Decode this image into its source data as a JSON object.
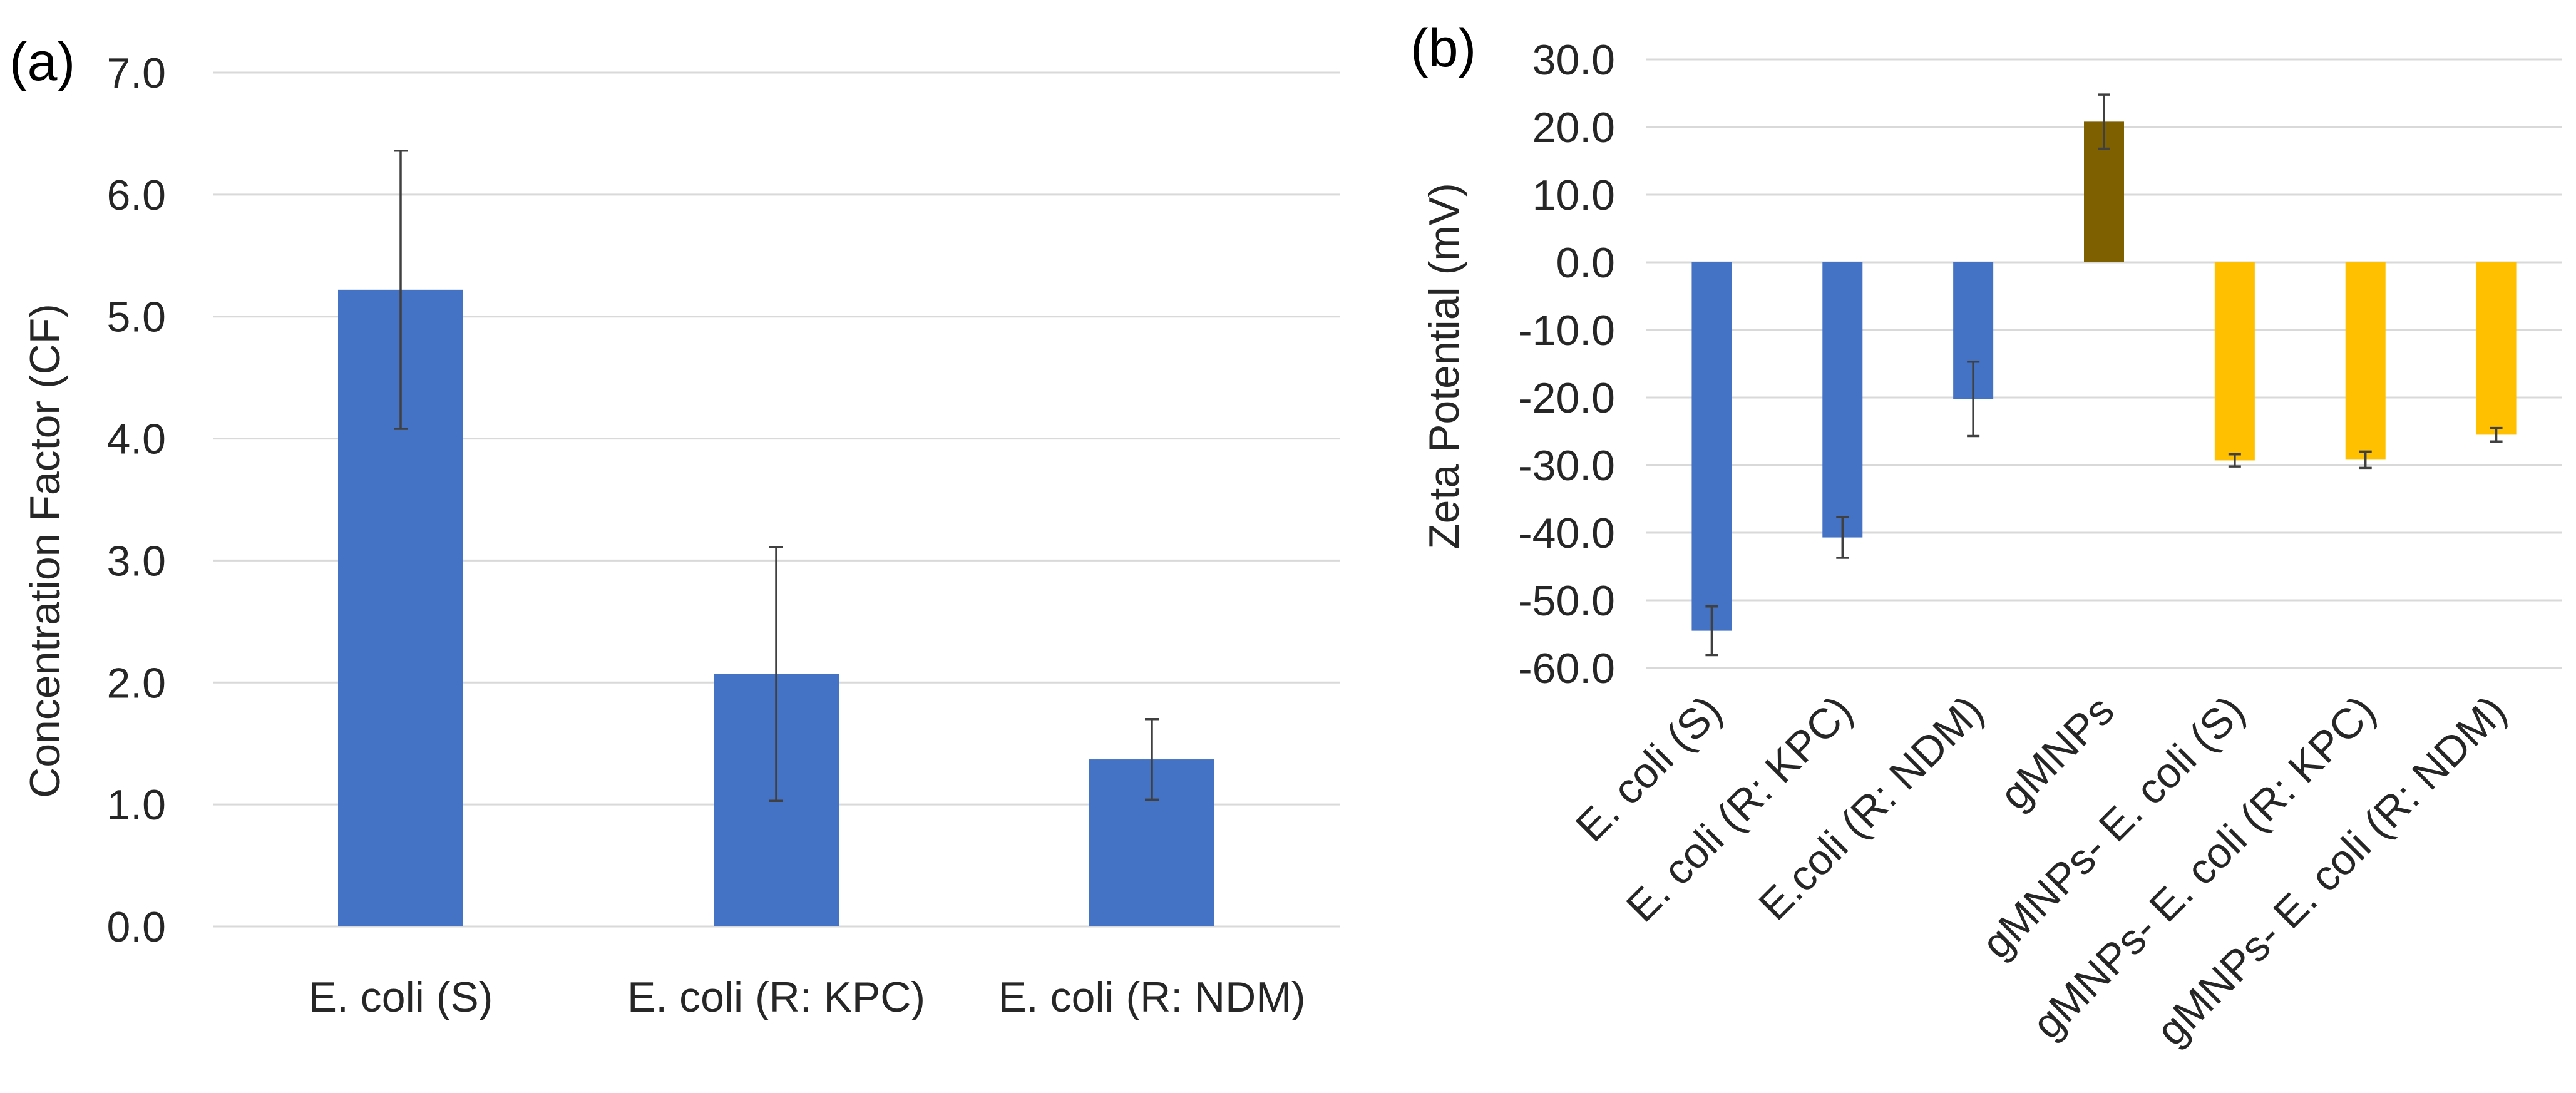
{
  "chart_data": [
    {
      "panel_label": "(a)",
      "type": "bar",
      "title": "",
      "xlabel": "",
      "ylabel": "Concentration Factor (CF)",
      "ylim": [
        0,
        7
      ],
      "yticks": [
        "0.0",
        "1.0",
        "2.0",
        "3.0",
        "4.0",
        "5.0",
        "6.0",
        "7.0"
      ],
      "grid": true,
      "categories": [
        "E. coli (S)",
        "E. coli (R: KPC)",
        "E. coli (R: NDM)"
      ],
      "values": [
        5.22,
        2.07,
        1.37
      ],
      "errors": [
        1.14,
        1.04,
        0.33
      ],
      "colors": [
        "#4472c4",
        "#4472c4",
        "#4472c4"
      ]
    },
    {
      "panel_label": "(b)",
      "type": "bar",
      "title": "",
      "xlabel": "",
      "ylabel": "Zeta Potential (mV)",
      "ylim": [
        -60,
        30
      ],
      "yticks": [
        "-60.0",
        "-50.0",
        "-40.0",
        "-30.0",
        "-20.0",
        "-10.0",
        "0.0",
        "10.0",
        "20.0",
        "30.0"
      ],
      "grid": true,
      "categories": [
        "E. coli (S)",
        "E. coli (R: KPC)",
        "E.coli (R: NDM)",
        "gMNPs",
        "gMNPs- E. coli (S)",
        "gMNPs- E. coli (R: KPC)",
        "gMNPs- E. coli (R: NDM)"
      ],
      "values": [
        -54.5,
        -40.7,
        -20.2,
        20.8,
        -29.3,
        -29.2,
        -25.5
      ],
      "errors": [
        3.6,
        3.0,
        5.5,
        4.0,
        0.9,
        1.2,
        1.0
      ],
      "colors": [
        "#4472c4",
        "#4472c4",
        "#4472c4",
        "#7f6000",
        "#ffc000",
        "#ffc000",
        "#ffc000"
      ]
    }
  ]
}
